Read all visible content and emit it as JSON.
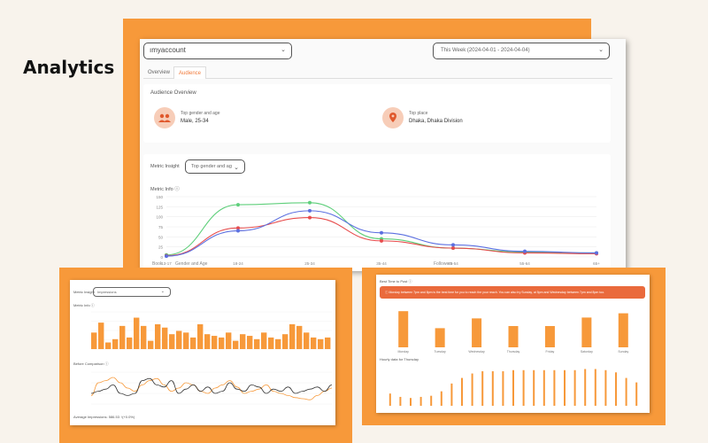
{
  "heading": "Analytics",
  "main": {
    "account_select": "ımyaccount",
    "date_range": "This Week (2024-04-01 - 2024-04-04)",
    "tabs": [
      "Overview",
      "Audience"
    ],
    "audience_overview": {
      "title": "Audience Overview",
      "gender_age_label": "Top gender and age",
      "gender_age_value": "Male, 25-34",
      "place_label": "Top place",
      "place_value": "Dhaka, Dhaka Division"
    },
    "metric_insight_label": "Metric Insight",
    "metric_select": "Top gender and ag",
    "metric_info": "Metric Info ⓘ",
    "bottom_left_labels": [
      "Book",
      "Gender and Age"
    ],
    "bottom_right_label": "Followers"
  },
  "chart_data": [
    {
      "type": "line",
      "x": [
        "13-17",
        "18-24",
        "25-34",
        "35-44",
        "45-54",
        "55-64",
        "65+"
      ],
      "yticks": [
        "0",
        "25",
        "50",
        "75",
        "100",
        "125",
        "150"
      ],
      "ylim": [
        0,
        150
      ],
      "series": [
        {
          "color": "#5fcf7b",
          "values": [
            5,
            130,
            135,
            45,
            22,
            12,
            10
          ]
        },
        {
          "color": "#e74c4c",
          "values": [
            3,
            72,
            98,
            40,
            22,
            10,
            8
          ]
        },
        {
          "color": "#5b6fe0",
          "values": [
            2,
            65,
            115,
            60,
            30,
            14,
            10
          ]
        }
      ]
    },
    {
      "type": "bar",
      "values": [
        20,
        32,
        8,
        12,
        28,
        14,
        38,
        28,
        10,
        30,
        26,
        18,
        22,
        20,
        14,
        30,
        18,
        16,
        14,
        20,
        10,
        18,
        16,
        12,
        20,
        14,
        12,
        18,
        30,
        28,
        20,
        14,
        12,
        14
      ],
      "ylim": [
        0,
        45
      ],
      "color": "#f7993a"
    },
    {
      "type": "line",
      "series": [
        {
          "color": "#f7993a",
          "values": [
            8,
            20,
            22,
            25,
            20,
            15,
            12,
            18,
            22,
            24,
            18,
            12,
            15,
            20,
            18,
            12,
            10,
            15,
            18,
            22,
            16,
            10,
            12,
            14,
            18,
            12,
            10,
            8,
            6,
            5,
            4,
            8,
            12,
            15
          ]
        },
        {
          "color": "#333333",
          "values": [
            10,
            12,
            14,
            18,
            10,
            8,
            10,
            22,
            24,
            18,
            16,
            22,
            10,
            14,
            18,
            12,
            16,
            10,
            12,
            20,
            14,
            12,
            18,
            16,
            10,
            14,
            12,
            16,
            10,
            12,
            14,
            16,
            12,
            18
          ]
        }
      ],
      "ylim": [
        0,
        30
      ]
    },
    {
      "type": "bar",
      "categories": [
        "Monday",
        "Tuesday",
        "Wednesday",
        "Thursday",
        "Friday",
        "Saturday",
        "Sunday"
      ],
      "values": [
        85,
        45,
        68,
        50,
        50,
        70,
        80
      ],
      "ylim": [
        0,
        100
      ],
      "color": "#f7993a"
    },
    {
      "type": "bar",
      "values": [
        22,
        16,
        14,
        16,
        18,
        26,
        40,
        50,
        58,
        62,
        62,
        62,
        64,
        64,
        64,
        64,
        64,
        64,
        64,
        66,
        66,
        64,
        60,
        50,
        42
      ],
      "ylim": [
        0,
        70
      ],
      "color": "#f7993a"
    }
  ],
  "left_shot": {
    "metric_insight_label": "Metric Insight",
    "select_value": "Impressions",
    "metric_info": "Metric Info ⓘ",
    "before_comparison": "Before Comparison ⓘ",
    "footer": "Average Impressions: 586.53 ↑(+0.0%)"
  },
  "right_shot": {
    "best_time_title": "Best Time to Post ⓘ",
    "alert_text": "Monday between 7pm and 8pm is the best time for you to reach the your reach. You can also try Sunday, at 5pm and Wednesday between 7pm and 8pm too.",
    "hourly_title": "Hourly data for Thursday"
  }
}
